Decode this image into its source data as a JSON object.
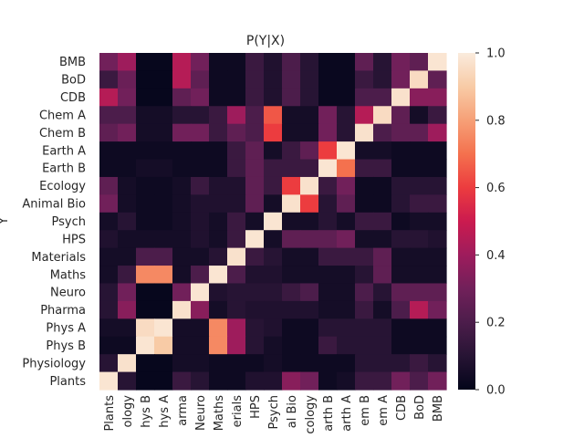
{
  "chart_data": {
    "type": "heatmap",
    "title": "P(Y|X)",
    "xlabel": "",
    "ylabel": "Y",
    "x_categories": [
      "Plants",
      "ology",
      "hys B",
      "hys A",
      "arma",
      "Neuro",
      "Maths",
      "erials",
      "HPS",
      "Psych",
      "al Bio",
      "cology",
      "arth B",
      "arth A",
      "em B",
      "em A",
      "CDB",
      "BoD",
      "BMB"
    ],
    "y_categories": [
      "BMB",
      "BoD",
      "CDB",
      "Chem A",
      "Chem B",
      "Earth A",
      "Earth B",
      "Ecology",
      "Animal Bio",
      "Psych",
      "HPS",
      "Materials",
      "Maths",
      "Neuro",
      "Pharma",
      "Phys A",
      "Phys B",
      "Physiology",
      "Plants"
    ],
    "values": [
      [
        0.3,
        0.4,
        0.01,
        0.01,
        0.45,
        0.3,
        0.03,
        0.03,
        0.15,
        0.08,
        0.2,
        0.1,
        0.02,
        0.02,
        0.25,
        0.1,
        0.3,
        0.25,
        0.98
      ],
      [
        0.15,
        0.28,
        0.01,
        0.01,
        0.45,
        0.25,
        0.03,
        0.03,
        0.15,
        0.08,
        0.2,
        0.1,
        0.02,
        0.02,
        0.15,
        0.1,
        0.3,
        0.95,
        0.25
      ],
      [
        0.45,
        0.3,
        0.01,
        0.01,
        0.25,
        0.3,
        0.03,
        0.03,
        0.15,
        0.08,
        0.2,
        0.1,
        0.02,
        0.02,
        0.2,
        0.2,
        0.97,
        0.35,
        0.35
      ],
      [
        0.2,
        0.2,
        0.05,
        0.05,
        0.1,
        0.1,
        0.15,
        0.4,
        0.2,
        0.65,
        0.05,
        0.05,
        0.3,
        0.1,
        0.45,
        0.95,
        0.25,
        0.05,
        0.15
      ],
      [
        0.25,
        0.3,
        0.05,
        0.05,
        0.3,
        0.3,
        0.15,
        0.25,
        0.2,
        0.6,
        0.05,
        0.05,
        0.3,
        0.1,
        0.97,
        0.2,
        0.25,
        0.25,
        0.4
      ],
      [
        0.03,
        0.03,
        0.03,
        0.03,
        0.03,
        0.03,
        0.03,
        0.15,
        0.25,
        0.05,
        0.15,
        0.25,
        0.6,
        0.98,
        0.05,
        0.05,
        0.03,
        0.03,
        0.03
      ],
      [
        0.03,
        0.03,
        0.05,
        0.05,
        0.03,
        0.03,
        0.03,
        0.15,
        0.25,
        0.15,
        0.15,
        0.15,
        0.98,
        0.7,
        0.15,
        0.15,
        0.03,
        0.03,
        0.03
      ],
      [
        0.25,
        0.05,
        0.03,
        0.03,
        0.05,
        0.15,
        0.08,
        0.08,
        0.25,
        0.15,
        0.6,
        0.97,
        0.15,
        0.3,
        0.03,
        0.03,
        0.1,
        0.1,
        0.1
      ],
      [
        0.3,
        0.05,
        0.03,
        0.03,
        0.05,
        0.08,
        0.08,
        0.08,
        0.25,
        0.05,
        0.97,
        0.6,
        0.1,
        0.25,
        0.03,
        0.03,
        0.1,
        0.15,
        0.15
      ],
      [
        0.05,
        0.1,
        0.03,
        0.03,
        0.05,
        0.08,
        0.05,
        0.15,
        0.05,
        0.98,
        0.05,
        0.05,
        0.1,
        0.05,
        0.15,
        0.15,
        0.03,
        0.05,
        0.05
      ],
      [
        0.08,
        0.05,
        0.05,
        0.05,
        0.05,
        0.08,
        0.05,
        0.15,
        0.98,
        0.05,
        0.25,
        0.25,
        0.25,
        0.3,
        0.05,
        0.05,
        0.1,
        0.1,
        0.08
      ],
      [
        0.05,
        0.05,
        0.2,
        0.2,
        0.05,
        0.05,
        0.1,
        0.97,
        0.15,
        0.1,
        0.05,
        0.05,
        0.15,
        0.15,
        0.15,
        0.25,
        0.05,
        0.05,
        0.05
      ],
      [
        0.05,
        0.15,
        0.75,
        0.75,
        0.05,
        0.2,
        0.98,
        0.2,
        0.08,
        0.08,
        0.05,
        0.05,
        0.05,
        0.05,
        0.1,
        0.25,
        0.05,
        0.05,
        0.05
      ],
      [
        0.1,
        0.3,
        0.01,
        0.01,
        0.3,
        0.98,
        0.08,
        0.1,
        0.1,
        0.1,
        0.15,
        0.2,
        0.05,
        0.05,
        0.2,
        0.1,
        0.25,
        0.25,
        0.25
      ],
      [
        0.1,
        0.35,
        0.01,
        0.01,
        0.97,
        0.35,
        0.05,
        0.1,
        0.08,
        0.08,
        0.08,
        0.08,
        0.05,
        0.05,
        0.15,
        0.05,
        0.2,
        0.45,
        0.3
      ],
      [
        0.05,
        0.05,
        0.95,
        0.98,
        0.05,
        0.05,
        0.75,
        0.4,
        0.1,
        0.08,
        0.03,
        0.03,
        0.1,
        0.1,
        0.1,
        0.1,
        0.03,
        0.03,
        0.03
      ],
      [
        0.03,
        0.03,
        0.98,
        0.9,
        0.05,
        0.05,
        0.75,
        0.4,
        0.1,
        0.05,
        0.03,
        0.03,
        0.15,
        0.1,
        0.1,
        0.1,
        0.03,
        0.03,
        0.03
      ],
      [
        0.1,
        0.97,
        0.01,
        0.01,
        0.05,
        0.05,
        0.03,
        0.03,
        0.03,
        0.05,
        0.03,
        0.03,
        0.03,
        0.03,
        0.1,
        0.1,
        0.1,
        0.15,
        0.1
      ],
      [
        0.98,
        0.1,
        0.01,
        0.01,
        0.15,
        0.1,
        0.03,
        0.03,
        0.08,
        0.08,
        0.35,
        0.3,
        0.03,
        0.05,
        0.15,
        0.15,
        0.3,
        0.2,
        0.3
      ]
    ],
    "colorbar": {
      "range": [
        0.0,
        1.0
      ],
      "ticks": [
        "0.0",
        "0.2",
        "0.4",
        "0.6",
        "0.8",
        "1.0"
      ],
      "colormap": "rocket",
      "stops": [
        "#03051a",
        "#271434",
        "#4c1d4b",
        "#71205a",
        "#9e1c5c",
        "#cb1b4f",
        "#ec3c3f",
        "#f4714e",
        "#f6a077",
        "#f8cba6",
        "#faebdd"
      ]
    }
  }
}
